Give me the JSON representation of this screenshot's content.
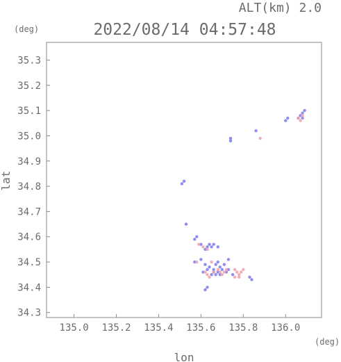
{
  "header": {
    "altitude_label": "ALT(km) 2.0",
    "timestamp": "2022/08/14 04:57:48",
    "y_unit": "(deg)",
    "x_unit": "(deg)"
  },
  "colors": {
    "axis": "#8a8a8a",
    "text": "#6b6b6b",
    "positive": "#f0a0aa",
    "negative": "#7a7af0"
  },
  "chart_data": {
    "type": "scatter",
    "title": "2022/08/14 04:57:48",
    "xlabel": "lon",
    "ylabel": "lat",
    "x_unit": "(deg)",
    "y_unit": "(deg)",
    "xlim": [
      134.87,
      136.17
    ],
    "ylim": [
      34.28,
      35.37
    ],
    "xticks": [
      "135.0",
      "135.2",
      "135.4",
      "135.6",
      "135.8",
      "136.0"
    ],
    "yticks": [
      "35.3",
      "35.2",
      "35.1",
      "35.0",
      "34.9",
      "34.8",
      "34.7",
      "34.6",
      "34.5",
      "34.4",
      "34.3"
    ],
    "grid": false,
    "series": [
      {
        "color": "#7a7af0",
        "points": [
          [
            136.09,
            35.1
          ],
          [
            136.08,
            35.09
          ],
          [
            136.07,
            35.08
          ],
          [
            136.06,
            35.07
          ],
          [
            136.08,
            35.07
          ],
          [
            136.01,
            35.07
          ],
          [
            136.0,
            35.06
          ],
          [
            135.86,
            35.02
          ],
          [
            135.74,
            34.99
          ],
          [
            135.74,
            34.98
          ],
          [
            135.51,
            34.81
          ],
          [
            135.52,
            34.82
          ],
          [
            135.53,
            34.65
          ],
          [
            135.58,
            34.6
          ],
          [
            135.57,
            34.59
          ],
          [
            135.6,
            34.57
          ],
          [
            135.63,
            34.56
          ],
          [
            135.64,
            34.57
          ],
          [
            135.65,
            34.56
          ],
          [
            135.66,
            34.57
          ],
          [
            135.62,
            34.55
          ],
          [
            135.68,
            34.56
          ],
          [
            135.57,
            34.5
          ],
          [
            135.6,
            34.51
          ],
          [
            135.62,
            34.49
          ],
          [
            135.64,
            34.48
          ],
          [
            135.66,
            34.47
          ],
          [
            135.67,
            34.49
          ],
          [
            135.68,
            34.5
          ],
          [
            135.69,
            34.48
          ],
          [
            135.7,
            34.47
          ],
          [
            135.71,
            34.49
          ],
          [
            135.65,
            34.45
          ],
          [
            135.66,
            34.46
          ],
          [
            135.67,
            34.45
          ],
          [
            135.68,
            34.46
          ],
          [
            135.69,
            34.45
          ],
          [
            135.63,
            34.47
          ],
          [
            135.61,
            34.46
          ],
          [
            135.72,
            34.46
          ],
          [
            135.73,
            34.47
          ],
          [
            135.75,
            34.45
          ],
          [
            135.62,
            34.39
          ],
          [
            135.63,
            34.4
          ],
          [
            135.83,
            34.44
          ],
          [
            135.84,
            34.43
          ],
          [
            135.73,
            34.51
          ]
        ]
      },
      {
        "color": "#f0a0aa",
        "points": [
          [
            136.08,
            35.08
          ],
          [
            136.06,
            35.07
          ],
          [
            136.07,
            35.06
          ],
          [
            135.88,
            34.99
          ],
          [
            135.59,
            34.57
          ],
          [
            135.61,
            34.56
          ],
          [
            135.63,
            34.55
          ],
          [
            135.62,
            34.46
          ],
          [
            135.63,
            34.45
          ],
          [
            135.64,
            34.44
          ],
          [
            135.66,
            34.46
          ],
          [
            135.68,
            34.47
          ],
          [
            135.69,
            34.46
          ],
          [
            135.7,
            34.45
          ],
          [
            135.71,
            34.46
          ],
          [
            135.72,
            34.47
          ],
          [
            135.76,
            34.47
          ],
          [
            135.77,
            34.46
          ],
          [
            135.78,
            34.45
          ],
          [
            135.79,
            34.46
          ],
          [
            135.78,
            34.44
          ],
          [
            135.8,
            34.47
          ],
          [
            135.76,
            34.44
          ],
          [
            135.58,
            34.5
          ],
          [
            135.65,
            34.5
          ]
        ]
      }
    ]
  }
}
